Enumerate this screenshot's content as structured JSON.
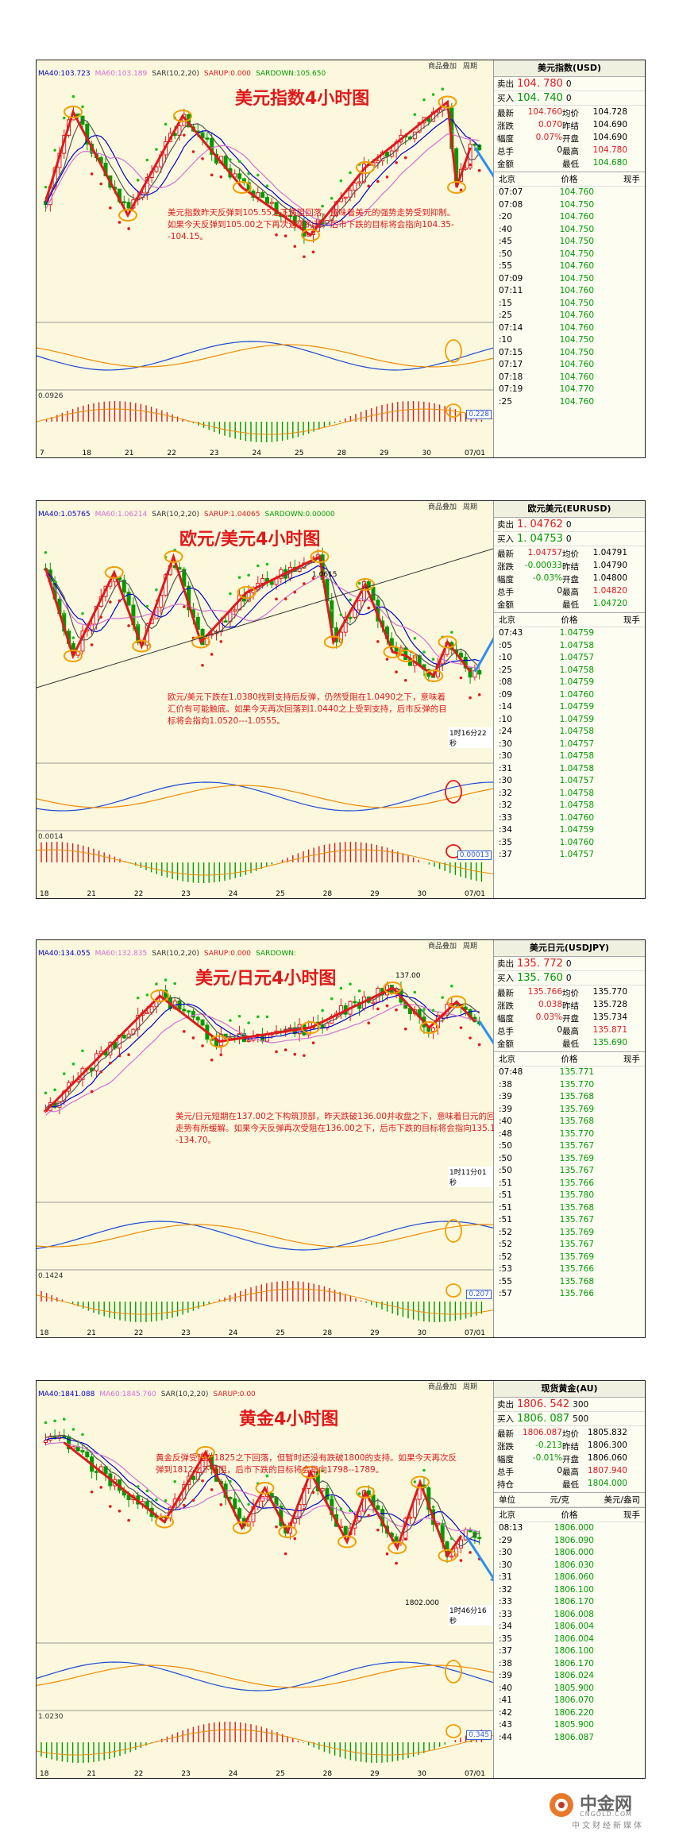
{
  "menu": [
    "商品叠加",
    "周期"
  ],
  "logo": {
    "name": "中金网",
    "url": "CNGOLD.COM",
    "tagline": "中文财经新媒体"
  },
  "chart_data": [
    {
      "type": "candlestick",
      "title": "美元指数4小时图",
      "indicators": [
        "MA40:103.723",
        "MA60:103.189",
        "SAR(10,2,20)",
        "SARUP:0.000",
        "SARDOWN:105.650"
      ],
      "indicator_colors": [
        "#0000cc",
        "#d56fd5",
        "#333333",
        "#e0191b",
        "#00a000"
      ],
      "x_ticks": [
        "7",
        "18",
        "21",
        "22",
        "23",
        "24",
        "25",
        "28",
        "29",
        "30",
        "07/01"
      ],
      "annotation": "美元指数昨天反弹到105.55之下遇阻回落，意味着美元的强势走势受到抑制。如果今天反弹到105.00之下再次遇阻的话，后市下跌的目标将会指向104.35--104.15。",
      "sub_labels": [
        "0.0926"
      ],
      "badge": "0.228",
      "trend_x": [
        0.02,
        0.08,
        0.2,
        0.32,
        0.45,
        0.6,
        0.72,
        0.9,
        0.92,
        0.95
      ],
      "trend_y": [
        0.55,
        0.1,
        0.62,
        0.12,
        0.48,
        0.72,
        0.38,
        0.05,
        0.48,
        0.28
      ],
      "quote": {
        "name": "美元指数(USD)",
        "sell_label": "卖出",
        "sell": "104. 780",
        "sell_sz": "0",
        "buy_label": "买入",
        "buy": "104. 740",
        "buy_sz": "0",
        "rows": [
          [
            "最新",
            "104.760",
            "均价",
            "104.728"
          ],
          [
            "涨跌",
            "0.070",
            "昨结",
            "104.690"
          ],
          [
            "幅度",
            "0.07%",
            "开盘",
            "104.690"
          ],
          [
            "总手",
            "0",
            "最高",
            "104.780"
          ],
          [
            "金额",
            "",
            "最低",
            "104.680"
          ]
        ],
        "tick_header": [
          "北京",
          "价格",
          "现手"
        ],
        "ticks": [
          [
            "07:07",
            "104.760"
          ],
          [
            "07:08",
            "104.750"
          ],
          [
            ":20",
            "104.760"
          ],
          [
            ":40",
            "104.750"
          ],
          [
            ":45",
            "104.750"
          ],
          [
            ":50",
            "104.750"
          ],
          [
            ":55",
            "104.760"
          ],
          [
            "07:09",
            "104.750"
          ],
          [
            "07:11",
            "104.760"
          ],
          [
            ":15",
            "104.750"
          ],
          [
            ":25",
            "104.760"
          ],
          [
            "07:14",
            "104.760"
          ],
          [
            ":10",
            "104.750"
          ],
          [
            "07:15",
            "104.750"
          ],
          [
            "07:17",
            "104.760"
          ],
          [
            "07:18",
            "104.760"
          ],
          [
            "07:19",
            "104.770"
          ],
          [
            ":25",
            "104.760"
          ]
        ]
      }
    },
    {
      "type": "candlestick",
      "title": "欧元/美元4小时图",
      "indicators": [
        "MA40:1.05765",
        "MA60:1.06214",
        "SAR(10,2,20)",
        "SARUP:1.04065",
        "SARDOWN:0.00000"
      ],
      "indicator_colors": [
        "#0000cc",
        "#d56fd5",
        "#333333",
        "#e0191b",
        "#00a000"
      ],
      "x_ticks": [
        "18",
        "21",
        "22",
        "23",
        "24",
        "25",
        "28",
        "29",
        "30",
        "07/01"
      ],
      "annotation": "欧元/美元下跌在1.0380找到支持后反弹，仍然受阻在1.0490之下，意味着汇价有可能触底。如果今天再次回落到1.0440之上受到支持，后市反弹的目标将会指向1.0520---1.0555。",
      "peak_label": "1.0615",
      "timer": "1时16分22秒",
      "sub_labels": [
        "0.0014"
      ],
      "badge": "0.00013",
      "trend_x": [
        0.02,
        0.08,
        0.17,
        0.23,
        0.3,
        0.36,
        0.46,
        0.62,
        0.65,
        0.72,
        0.78,
        0.81,
        0.87,
        0.9,
        0.95
      ],
      "trend_y": [
        0.18,
        0.62,
        0.2,
        0.57,
        0.12,
        0.55,
        0.3,
        0.12,
        0.55,
        0.26,
        0.6,
        0.62,
        0.72,
        0.55,
        0.7
      ],
      "quote": {
        "name": "欧元美元(EURUSD)",
        "sell_label": "卖出",
        "sell": "1. 04762",
        "sell_sz": "0",
        "buy_label": "买入",
        "buy": "1. 04753",
        "buy_sz": "0",
        "rows": [
          [
            "最新",
            "1.04757",
            "均价",
            "1.04791"
          ],
          [
            "涨跌",
            "-0.00033",
            "昨结",
            "1.04790"
          ],
          [
            "幅度",
            "-0.03%",
            "开盘",
            "1.04800"
          ],
          [
            "总手",
            "0",
            "最高",
            "1.04820"
          ],
          [
            "金额",
            "",
            "最低",
            "1.04720"
          ]
        ],
        "tick_header": [
          "北京",
          "价格",
          "现手"
        ],
        "ticks": [
          [
            "07:43",
            "1.04759"
          ],
          [
            ":05",
            "1.04758"
          ],
          [
            ":10",
            "1.04757"
          ],
          [
            ":25",
            "1.04758"
          ],
          [
            ":08",
            "1.04759"
          ],
          [
            ":09",
            "1.04760"
          ],
          [
            ":14",
            "1.04759"
          ],
          [
            ":10",
            "1.04759"
          ],
          [
            ":24",
            "1.04758"
          ],
          [
            ":30",
            "1.04757"
          ],
          [
            ":30",
            "1.04758"
          ],
          [
            ":31",
            "1.04758"
          ],
          [
            ":30",
            "1.04757"
          ],
          [
            ":32",
            "1.04758"
          ],
          [
            ":32",
            "1.04758"
          ],
          [
            ":33",
            "1.04760"
          ],
          [
            ":34",
            "1.04759"
          ],
          [
            ":35",
            "1.04760"
          ],
          [
            ":37",
            "1.04757"
          ]
        ]
      }
    },
    {
      "type": "candlestick",
      "title": "美元/日元4小时图",
      "indicators": [
        "MA40:134.055",
        "MA60:132.835",
        "SAR(10,2,20)",
        "SARUP:0.000",
        "SARDOWN:"
      ],
      "indicator_colors": [
        "#0000cc",
        "#d56fd5",
        "#333333",
        "#e0191b",
        "#00a000"
      ],
      "x_ticks": [
        "18",
        "21",
        "22",
        "23",
        "24",
        "25",
        "28",
        "29",
        "30",
        "07/01"
      ],
      "annotation": "美元/日元短期在137.00之下构筑顶部，昨天跌破136.00并收盘之下，意味着日元的回跌走势有所缓解。如果今天反弹再次受阻在136.00之下，后市下跌的目标将会指向135.10--134.70。",
      "peak_label": "137.00",
      "timer": "1时11分01秒",
      "sub_labels": [
        "0.1424"
      ],
      "badge": "0.207",
      "trend_x": [
        0.02,
        0.27,
        0.4,
        0.6,
        0.78,
        0.86,
        0.92,
        0.96
      ],
      "trend_y": [
        0.7,
        0.12,
        0.35,
        0.28,
        0.08,
        0.28,
        0.15,
        0.25
      ],
      "quote": {
        "name": "美元日元(USDJPY)",
        "sell_label": "卖出",
        "sell": "135. 772",
        "sell_sz": "0",
        "buy_label": "买入",
        "buy": "135. 760",
        "buy_sz": "0",
        "rows": [
          [
            "最新",
            "135.766",
            "均价",
            "135.770"
          ],
          [
            "涨跌",
            "0.038",
            "昨结",
            "135.728"
          ],
          [
            "幅度",
            "0.03%",
            "开盘",
            "135.734"
          ],
          [
            "总手",
            "0",
            "最高",
            "135.871"
          ],
          [
            "金额",
            "",
            "最低",
            "135.690"
          ]
        ],
        "tick_header": [
          "北京",
          "价格",
          "现手"
        ],
        "ticks": [
          [
            "07:48",
            "135.771"
          ],
          [
            ":38",
            "135.770"
          ],
          [
            ":39",
            "135.768"
          ],
          [
            ":39",
            "135.769"
          ],
          [
            ":40",
            "135.768"
          ],
          [
            ":48",
            "135.770"
          ],
          [
            ":50",
            "135.767"
          ],
          [
            ":50",
            "135.769"
          ],
          [
            ":50",
            "135.767"
          ],
          [
            ":51",
            "135.766"
          ],
          [
            ":51",
            "135.780"
          ],
          [
            ":51",
            "135.768"
          ],
          [
            ":51",
            "135.767"
          ],
          [
            ":52",
            "135.769"
          ],
          [
            ":52",
            "135.767"
          ],
          [
            ":52",
            "135.769"
          ],
          [
            ":53",
            "135.766"
          ],
          [
            ":55",
            "135.768"
          ],
          [
            ":57",
            "135.766"
          ]
        ]
      }
    },
    {
      "type": "candlestick",
      "title": "黄金4小时图",
      "indicators": [
        "MA40:1841.088",
        "MA60:1845.760",
        "SAR(10,2,20)",
        "SARUP:0.00"
      ],
      "indicator_colors": [
        "#0000cc",
        "#d56fd5",
        "#333333",
        "#e0191b"
      ],
      "x_ticks": [
        "18",
        "21",
        "22",
        "23",
        "24",
        "25",
        "28",
        "29",
        "30",
        "07/01"
      ],
      "annotation": "黄金反弹受阻在1825之下回落，但暂时还没有跌破1800的支持。如果今天再次反弹到1812之下遇阻，后市下跌的目标将会指向1798--1789。",
      "trough_label": "1802.000",
      "timer": "1时46分16秒",
      "sub_labels": [
        "1.0230"
      ],
      "badge": "0.345",
      "trend_x": [
        0.06,
        0.28,
        0.37,
        0.45,
        0.5,
        0.55,
        0.6,
        0.68,
        0.72,
        0.79,
        0.84,
        0.9,
        0.93
      ],
      "trend_y": [
        0.15,
        0.55,
        0.2,
        0.58,
        0.38,
        0.6,
        0.3,
        0.65,
        0.4,
        0.68,
        0.35,
        0.72,
        0.62
      ],
      "quote": {
        "name": "现货黄金(AU)",
        "sell_label": "卖出",
        "sell": "1806. 542",
        "sell_sz": "300",
        "buy_label": "买入",
        "buy": "1806. 087",
        "buy_sz": "500",
        "rows": [
          [
            "最新",
            "1806.087",
            "均价",
            "1805.832"
          ],
          [
            "涨跌",
            "-0.213",
            "昨结",
            "1806.300"
          ],
          [
            "幅度",
            "-0.01%",
            "开盘",
            "1806.060"
          ],
          [
            "总手",
            "0",
            "最高",
            "1807.940"
          ],
          [
            "持仓",
            "",
            "最低",
            "1804.000"
          ]
        ],
        "unit_row": [
          "单位",
          "元/克",
          "美元/盎司"
        ],
        "tick_header": [
          "北京",
          "价格",
          "现手"
        ],
        "ticks": [
          [
            "08:13",
            "1806.000"
          ],
          [
            ":29",
            "1806.090"
          ],
          [
            ":30",
            "1806.000"
          ],
          [
            ":30",
            "1806.030"
          ],
          [
            ":31",
            "1806.060"
          ],
          [
            ":32",
            "1806.100"
          ],
          [
            ":33",
            "1806.170"
          ],
          [
            ":33",
            "1806.008"
          ],
          [
            ":34",
            "1806.004"
          ],
          [
            ":35",
            "1806.004"
          ],
          [
            ":37",
            "1806.100"
          ],
          [
            ":38",
            "1806.170"
          ],
          [
            ":39",
            "1806.024"
          ],
          [
            ":40",
            "1805.900"
          ],
          [
            ":41",
            "1806.070"
          ],
          [
            ":42",
            "1806.220"
          ],
          [
            ":43",
            "1805.900"
          ],
          [
            ":44",
            "1806.087"
          ]
        ]
      }
    }
  ]
}
